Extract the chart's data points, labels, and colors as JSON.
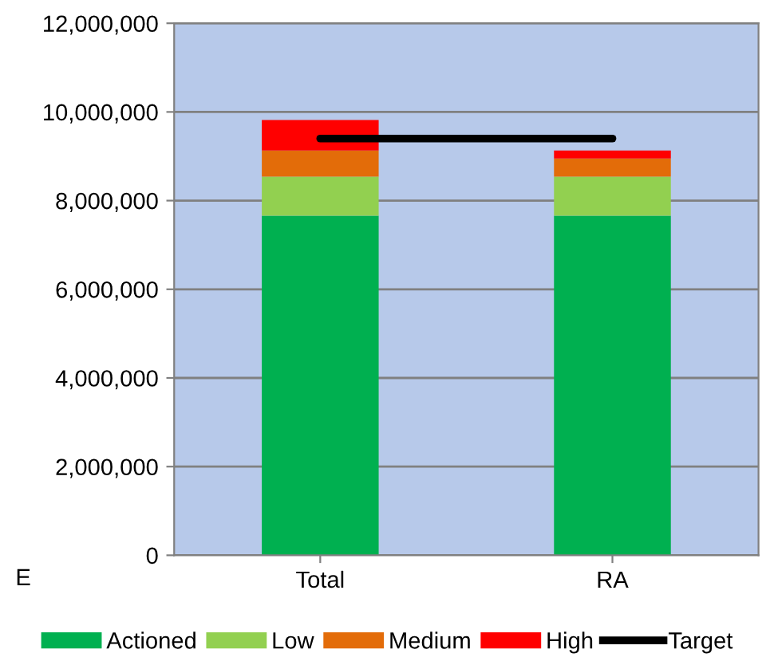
{
  "chart_data": {
    "type": "bar",
    "stacked": true,
    "categories": [
      "Total",
      "RA"
    ],
    "series": [
      {
        "name": "Actioned",
        "color": "#00b050",
        "values": [
          7660000,
          7660000
        ]
      },
      {
        "name": "Low",
        "color": "#92d050",
        "values": [
          880000,
          880000
        ]
      },
      {
        "name": "Medium",
        "color": "#e36c09",
        "values": [
          590000,
          410000
        ]
      },
      {
        "name": "High",
        "color": "#ff0000",
        "values": [
          690000,
          180000
        ]
      },
      {
        "name": "Target",
        "type": "line",
        "color": "#000000",
        "values": [
          9400000,
          9400000
        ]
      }
    ],
    "ylim": [
      0,
      12000000
    ],
    "yticks": [
      {
        "value": 0,
        "label": "0"
      },
      {
        "value": 2000000,
        "label": "2,000,000"
      },
      {
        "value": 4000000,
        "label": "4,000,000"
      },
      {
        "value": 6000000,
        "label": "6,000,000"
      },
      {
        "value": 8000000,
        "label": "8,000,000"
      },
      {
        "value": 10000000,
        "label": "10,000,000"
      },
      {
        "value": 12000000,
        "label": "12,000,000"
      }
    ],
    "grid": "y",
    "legend": "bottom",
    "annotations": [
      "E"
    ]
  }
}
